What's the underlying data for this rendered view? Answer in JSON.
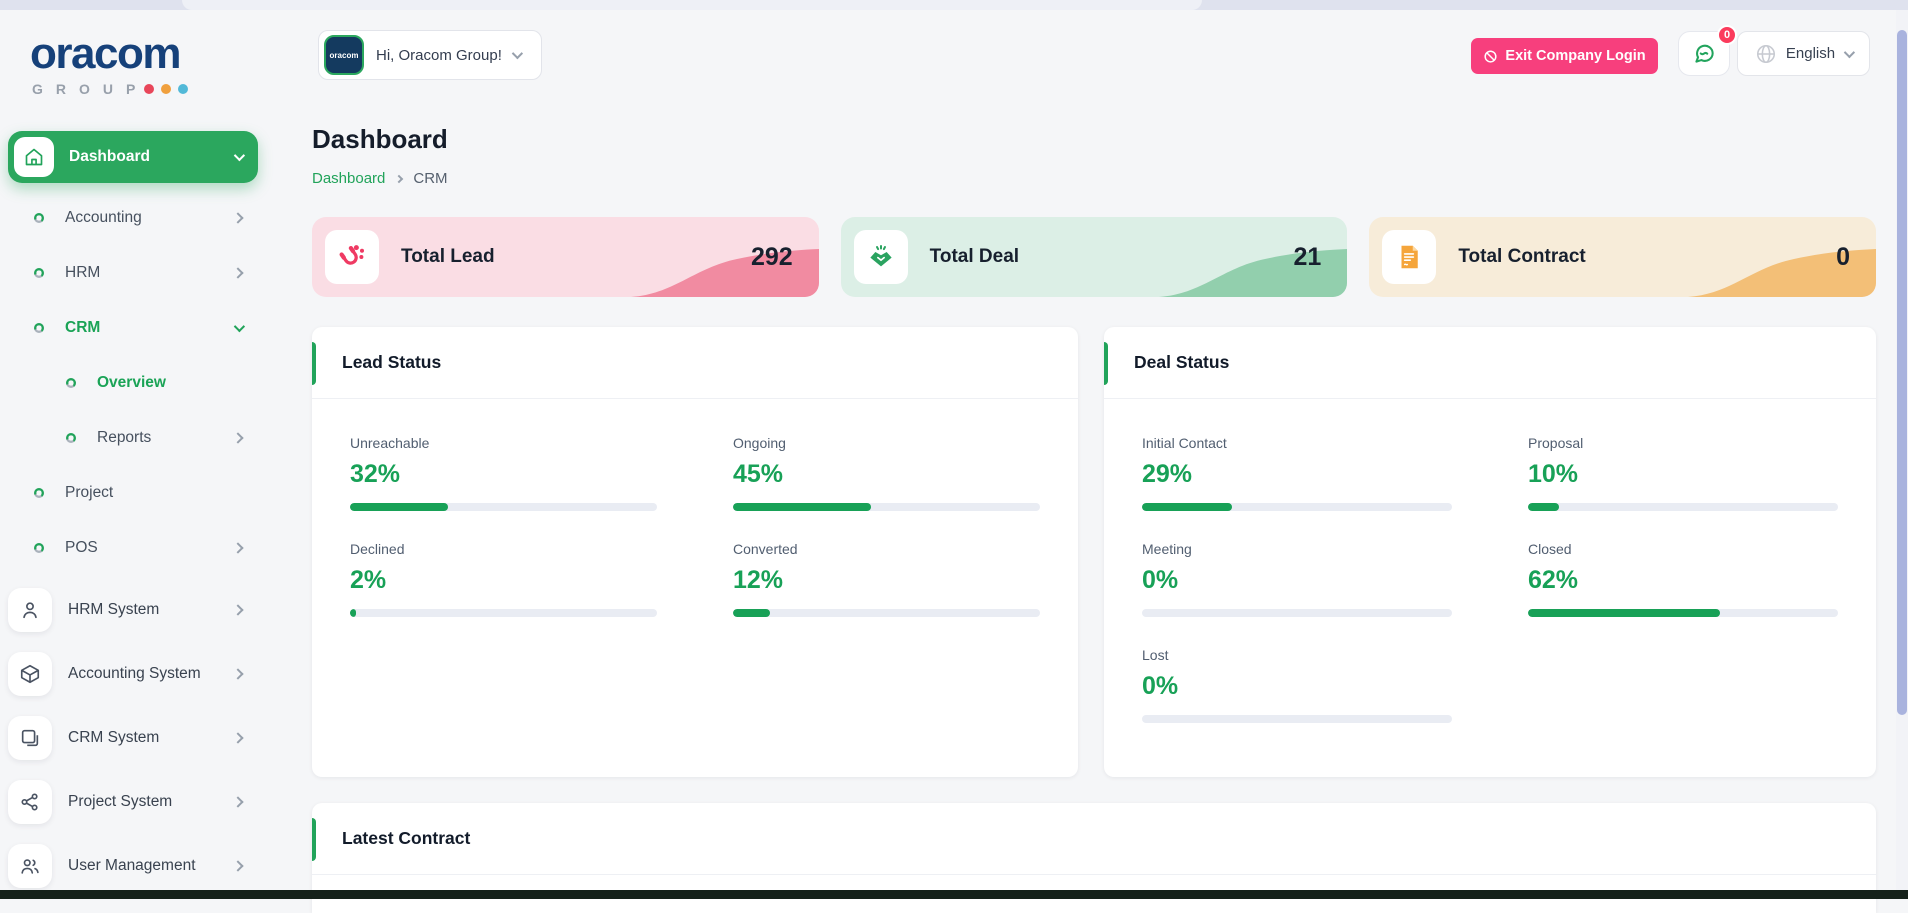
{
  "brand": {
    "name": "oracom",
    "group_text": "GROUP",
    "dot_colors": [
      "#e8465a",
      "#f0a03e",
      "#52b9d8"
    ]
  },
  "header": {
    "greeting": "Hi, Oracom Group!",
    "avatar_text": "oracom",
    "exit_button_label": "Exit Company Login",
    "chat_badge_count": "0",
    "language_selected": "English"
  },
  "page": {
    "title": "Dashboard",
    "breadcrumb_root": "Dashboard",
    "breadcrumb_current": "CRM"
  },
  "sidebar": {
    "items": [
      {
        "label": "Dashboard"
      },
      {
        "label": "Accounting"
      },
      {
        "label": "HRM"
      },
      {
        "label": "CRM"
      },
      {
        "label": "Overview"
      },
      {
        "label": "Reports"
      },
      {
        "label": "Project"
      },
      {
        "label": "POS"
      }
    ],
    "system_items": [
      {
        "label": "HRM System"
      },
      {
        "label": "Accounting System"
      },
      {
        "label": "CRM System"
      },
      {
        "label": "Project System"
      },
      {
        "label": "User Management"
      }
    ]
  },
  "stats": [
    {
      "label": "Total Lead",
      "value": "292"
    },
    {
      "label": "Total Deal",
      "value": "21"
    },
    {
      "label": "Total Contract",
      "value": "0"
    }
  ],
  "lead_status": {
    "title": "Lead Status",
    "metrics": [
      {
        "label": "Unreachable",
        "value": 32,
        "percent": "32%"
      },
      {
        "label": "Ongoing",
        "value": 45,
        "percent": "45%"
      },
      {
        "label": "Declined",
        "value": 2,
        "percent": "2%"
      },
      {
        "label": "Converted",
        "value": 12,
        "percent": "12%"
      }
    ]
  },
  "deal_status": {
    "title": "Deal Status",
    "metrics": [
      {
        "label": "Initial Contact",
        "value": 29,
        "percent": "29%"
      },
      {
        "label": "Proposal",
        "value": 10,
        "percent": "10%"
      },
      {
        "label": "Meeting",
        "value": 0,
        "percent": "0%"
      },
      {
        "label": "Closed",
        "value": 62,
        "percent": "62%"
      },
      {
        "label": "Lost",
        "value": 0,
        "percent": "0%"
      }
    ]
  },
  "latest_contract": {
    "title": "Latest Contract"
  },
  "colors": {
    "primary_green": "#21a35a",
    "exit_pink": "#f73f7d",
    "badge_red": "#fb3b5c",
    "logo_navy": "#16417a",
    "lead_card_bg": "#fadde4",
    "deal_card_bg": "#dcefe6",
    "contract_card_bg": "#f7ecd9"
  }
}
